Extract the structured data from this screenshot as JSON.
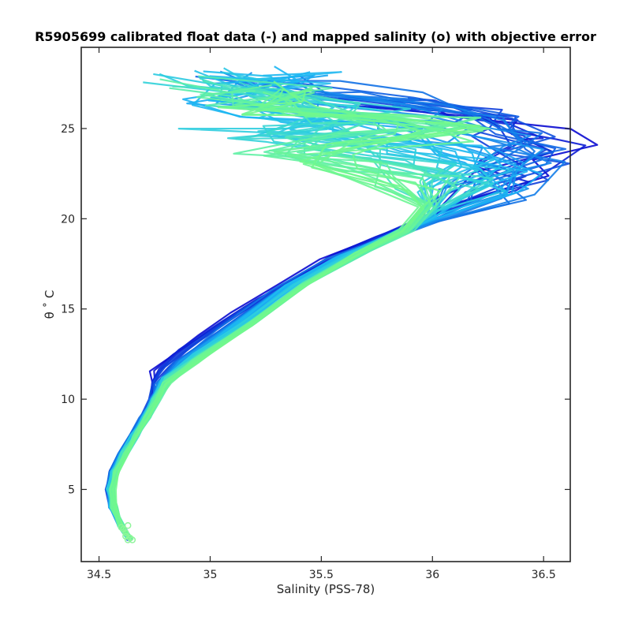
{
  "chart_data": {
    "type": "line",
    "title": "R5905699 calibrated float data (-) and mapped salinity (o) with objective error",
    "xlabel": "Salinity (PSS-78)",
    "ylabel": "θ ˚ C",
    "xlim": [
      34.42,
      36.62
    ],
    "ylim": [
      1.0,
      29.5
    ],
    "xticks": [
      34.5,
      35,
      35.5,
      36,
      36.5
    ],
    "xtick_labels": [
      "34.5",
      "35",
      "35.5",
      "36",
      "36.5"
    ],
    "yticks": [
      5,
      10,
      15,
      20,
      25
    ],
    "ytick_labels": [
      "5",
      "10",
      "15",
      "20",
      "25"
    ],
    "grid": false,
    "legend": "none",
    "colormap": "jet (lower half): dark blue → cyan → light green",
    "profile_count": 60,
    "series": [
      {
        "color": "#0a0ad0",
        "points": [
          [
            34.64,
            2.2
          ],
          [
            34.6,
            3.0
          ],
          [
            34.56,
            4.0
          ],
          [
            34.54,
            5.0
          ],
          [
            34.56,
            6.0
          ],
          [
            34.6,
            7.0
          ],
          [
            34.65,
            8.0
          ],
          [
            34.7,
            9.0
          ],
          [
            34.74,
            10.0
          ],
          [
            34.74,
            11.0
          ],
          [
            34.74,
            11.5
          ],
          [
            34.8,
            12.3
          ],
          [
            34.95,
            13.5
          ],
          [
            35.1,
            14.8
          ],
          [
            35.3,
            16.3
          ],
          [
            35.5,
            17.8
          ],
          [
            35.7,
            18.8
          ],
          [
            35.95,
            19.9
          ],
          [
            36.2,
            21.2
          ],
          [
            36.4,
            22.5
          ],
          [
            36.52,
            23.6
          ],
          [
            36.55,
            24.3
          ],
          [
            36.45,
            25.0
          ],
          [
            36.2,
            25.6
          ],
          [
            36.0,
            26.2
          ],
          [
            35.9,
            26.9
          ],
          [
            35.7,
            27.6
          ],
          [
            35.4,
            28.0
          ],
          [
            35.0,
            28.2
          ]
        ]
      },
      {
        "color": "#1270e6",
        "points": [
          [
            34.64,
            2.2
          ],
          [
            34.6,
            3.0
          ],
          [
            34.56,
            4.0
          ],
          [
            34.54,
            5.0
          ],
          [
            34.56,
            6.0
          ],
          [
            34.6,
            7.0
          ],
          [
            34.65,
            8.0
          ],
          [
            34.7,
            9.0
          ],
          [
            34.74,
            10.0
          ],
          [
            34.76,
            10.8
          ],
          [
            34.85,
            12.0
          ],
          [
            35.05,
            13.8
          ],
          [
            35.3,
            16.0
          ],
          [
            35.55,
            17.8
          ],
          [
            35.75,
            18.7
          ],
          [
            36.0,
            19.8
          ],
          [
            36.25,
            21.3
          ],
          [
            36.4,
            22.8
          ],
          [
            36.48,
            23.8
          ],
          [
            36.4,
            24.5
          ],
          [
            36.25,
            25.3
          ],
          [
            36.1,
            26.0
          ],
          [
            35.8,
            26.9
          ],
          [
            35.4,
            27.5
          ],
          [
            35.0,
            27.9
          ]
        ]
      },
      {
        "color": "#1ab4f4",
        "points": [
          [
            34.64,
            2.3
          ],
          [
            34.6,
            3.0
          ],
          [
            34.56,
            4.0
          ],
          [
            34.55,
            5.0
          ],
          [
            34.57,
            6.0
          ],
          [
            34.61,
            7.0
          ],
          [
            34.66,
            8.0
          ],
          [
            34.71,
            9.0
          ],
          [
            34.75,
            10.0
          ],
          [
            34.8,
            11.0
          ],
          [
            34.9,
            12.1
          ],
          [
            35.1,
            13.9
          ],
          [
            35.35,
            16.2
          ],
          [
            35.6,
            17.9
          ],
          [
            35.8,
            18.9
          ],
          [
            36.0,
            20.0
          ],
          [
            36.2,
            21.6
          ],
          [
            36.3,
            22.9
          ],
          [
            36.2,
            23.9
          ],
          [
            36.0,
            24.7
          ],
          [
            35.7,
            25.4
          ],
          [
            35.3,
            26.0
          ],
          [
            34.9,
            26.6
          ],
          [
            35.2,
            27.2
          ],
          [
            35.6,
            27.8
          ],
          [
            35.3,
            28.4
          ]
        ]
      },
      {
        "color": "#2fd0dc",
        "points": [
          [
            34.63,
            2.4
          ],
          [
            34.6,
            3.0
          ],
          [
            34.56,
            4.0
          ],
          [
            34.55,
            5.0
          ],
          [
            34.57,
            6.0
          ],
          [
            34.61,
            7.0
          ],
          [
            34.66,
            8.0
          ],
          [
            34.71,
            9.0
          ],
          [
            34.75,
            10.0
          ],
          [
            34.8,
            11.2
          ],
          [
            34.95,
            12.5
          ],
          [
            35.15,
            14.1
          ],
          [
            35.4,
            16.4
          ],
          [
            35.65,
            18.1
          ],
          [
            35.85,
            19.2
          ],
          [
            36.0,
            20.4
          ],
          [
            36.1,
            21.9
          ],
          [
            36.05,
            23.0
          ],
          [
            35.8,
            23.8
          ],
          [
            35.4,
            24.3
          ],
          [
            35.0,
            24.7
          ],
          [
            35.5,
            25.3
          ],
          [
            35.9,
            25.9
          ],
          [
            35.3,
            26.6
          ],
          [
            34.9,
            27.3
          ],
          [
            34.8,
            27.7
          ]
        ]
      },
      {
        "color": "#5ef0a6",
        "points": [
          [
            34.64,
            2.2
          ],
          [
            34.6,
            3.0
          ],
          [
            34.57,
            4.0
          ],
          [
            34.56,
            5.0
          ],
          [
            34.58,
            6.0
          ],
          [
            34.62,
            7.0
          ],
          [
            34.67,
            8.0
          ],
          [
            34.72,
            9.0
          ],
          [
            34.76,
            10.0
          ],
          [
            34.82,
            11.1
          ],
          [
            34.95,
            12.3
          ],
          [
            35.2,
            14.3
          ],
          [
            35.45,
            16.5
          ],
          [
            35.7,
            18.2
          ],
          [
            35.9,
            19.4
          ],
          [
            36.0,
            20.8
          ],
          [
            35.95,
            22.1
          ],
          [
            35.7,
            23.0
          ],
          [
            35.2,
            23.8
          ],
          [
            35.6,
            24.5
          ],
          [
            36.1,
            25.2
          ],
          [
            35.6,
            25.8
          ],
          [
            35.0,
            26.5
          ],
          [
            35.3,
            27.1
          ],
          [
            35.0,
            27.6
          ]
        ]
      },
      {
        "color": "#72f88c",
        "points": [
          [
            34.64,
            2.3
          ],
          [
            34.6,
            3.0
          ],
          [
            34.57,
            4.0
          ],
          [
            34.56,
            5.0
          ],
          [
            34.58,
            6.0
          ],
          [
            34.62,
            7.0
          ],
          [
            34.67,
            8.0
          ],
          [
            34.72,
            9.0
          ],
          [
            34.76,
            10.0
          ],
          [
            34.8,
            10.8
          ],
          [
            34.93,
            12.0
          ],
          [
            35.15,
            13.9
          ],
          [
            35.4,
            16.1
          ],
          [
            35.65,
            18.0
          ],
          [
            35.85,
            19.3
          ],
          [
            35.95,
            20.6
          ],
          [
            35.9,
            21.8
          ],
          [
            35.5,
            22.9
          ],
          [
            35.7,
            23.9
          ],
          [
            36.2,
            24.8
          ],
          [
            35.8,
            25.5
          ],
          [
            35.2,
            26.1
          ],
          [
            35.6,
            26.8
          ],
          [
            35.3,
            27.4
          ]
        ]
      }
    ],
    "mapped_salinity_points": [
      [
        34.63,
        2.2
      ],
      [
        34.62,
        2.4
      ],
      [
        34.62,
        2.6
      ],
      [
        34.61,
        2.8
      ],
      [
        34.63,
        3.0
      ],
      [
        34.64,
        2.3
      ],
      [
        34.65,
        2.2
      ],
      [
        34.6,
        2.9
      ]
    ]
  }
}
